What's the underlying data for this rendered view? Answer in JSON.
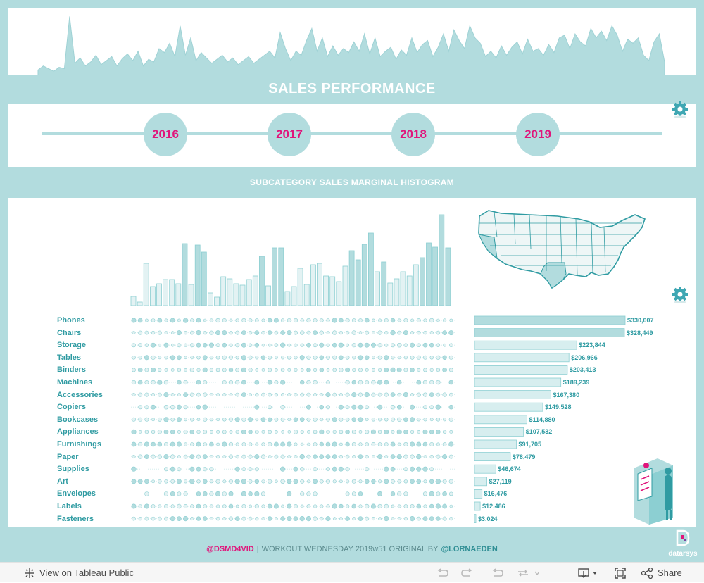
{
  "dashboard": {
    "title": "SALES PERFORMANCE",
    "histogram_title": "SUBCATEGORY SALES MARGINAL HISTOGRAM",
    "colors": {
      "accent": "#b2dcde",
      "pink": "#e0157b",
      "teal_text": "#2f9ba2",
      "bar_fill": "#d7eeef",
      "bar_stroke": "#8ccfd2"
    }
  },
  "years": [
    "2016",
    "2017",
    "2018",
    "2019"
  ],
  "footer": {
    "handle1": "@DSMD4VID",
    "middle": "WORKOUT WEDNESDAY 2019w51 ORIGINAL BY",
    "handle2": "@LORNAEDEN"
  },
  "logo_text": "datarsys",
  "toolbar": {
    "view_label": "View on Tableau Public",
    "share_label": "Share"
  },
  "chart_data": [
    {
      "type": "area",
      "x": [
        1,
        2,
        3,
        4,
        5,
        6,
        7,
        8,
        9,
        10,
        11,
        12,
        13,
        14,
        15,
        16,
        17,
        18,
        19,
        20,
        21,
        22,
        23,
        24,
        25,
        26,
        27,
        28,
        29,
        30,
        31,
        32,
        33,
        34,
        35,
        36,
        37,
        38,
        39,
        40,
        41,
        42,
        43,
        44,
        45,
        46,
        47,
        48,
        49,
        50,
        51,
        52,
        53,
        54,
        55,
        56,
        57,
        58,
        59,
        60,
        61,
        62,
        63,
        64,
        65,
        66,
        67,
        68,
        69,
        70,
        71,
        72,
        73,
        74,
        75,
        76,
        77,
        78,
        79,
        80,
        81,
        82,
        83,
        84,
        85,
        86,
        87,
        88,
        89,
        90,
        91,
        92,
        93,
        94,
        95,
        96,
        97,
        98,
        99,
        100,
        101,
        102,
        103,
        104,
        105,
        106,
        107,
        108,
        109,
        110,
        111,
        112,
        113,
        114,
        115,
        116,
        117,
        118,
        119,
        120
      ],
      "values": [
        8,
        14,
        10,
        6,
        12,
        10,
        88,
        18,
        26,
        14,
        20,
        30,
        16,
        22,
        28,
        14,
        25,
        32,
        22,
        36,
        14,
        24,
        20,
        40,
        34,
        48,
        28,
        74,
        30,
        56,
        22,
        34,
        26,
        18,
        24,
        30,
        20,
        26,
        16,
        22,
        28,
        18,
        24,
        30,
        36,
        26,
        64,
        40,
        22,
        36,
        30,
        52,
        70,
        36,
        56,
        28,
        44,
        30,
        40,
        34,
        50,
        36,
        62,
        32,
        56,
        28,
        36,
        42,
        24,
        38,
        30,
        56,
        34,
        46,
        52,
        28,
        42,
        62,
        36,
        68,
        52,
        40,
        74,
        56,
        48,
        28,
        36,
        26,
        44,
        30,
        42,
        50,
        32,
        54,
        36,
        40,
        30,
        46,
        34,
        56,
        60,
        40,
        62,
        50,
        44,
        70,
        56,
        66,
        52,
        74,
        60,
        36,
        54,
        48,
        56,
        30,
        22,
        50,
        62,
        20
      ]
    },
    {
      "type": "bar",
      "values": [
        13,
        5,
        60,
        27,
        31,
        37,
        37,
        31,
        88,
        30,
        86,
        76,
        18,
        12,
        41,
        38,
        31,
        29,
        37,
        42,
        70,
        28,
        82,
        82,
        20,
        27,
        53,
        30,
        58,
        60,
        42,
        41,
        34,
        56,
        78,
        65,
        87,
        103,
        48,
        62,
        32,
        38,
        48,
        42,
        58,
        68,
        89,
        83,
        129,
        82
      ]
    },
    {
      "type": "bar",
      "categories": [
        "Phones",
        "Chairs",
        "Storage",
        "Tables",
        "Binders",
        "Machines",
        "Accessories",
        "Copiers",
        "Bookcases",
        "Appliances",
        "Furnishings",
        "Paper",
        "Supplies",
        "Art",
        "Envelopes",
        "Labels",
        "Fasteners"
      ],
      "values": [
        330007,
        328449,
        223844,
        206966,
        203413,
        189239,
        167380,
        149528,
        114880,
        107532,
        91705,
        78479,
        46674,
        27119,
        16476,
        12486,
        3024
      ],
      "value_labels": [
        "$330,007",
        "$328,449",
        "$223,844",
        "$206,966",
        "$203,413",
        "$189,239",
        "$167,380",
        "$149,528",
        "$114,880",
        "$107,532",
        "$91,705",
        "$78,479",
        "$46,674",
        "$27,119",
        "$16,476",
        "$12,486",
        "$3,024"
      ]
    }
  ]
}
